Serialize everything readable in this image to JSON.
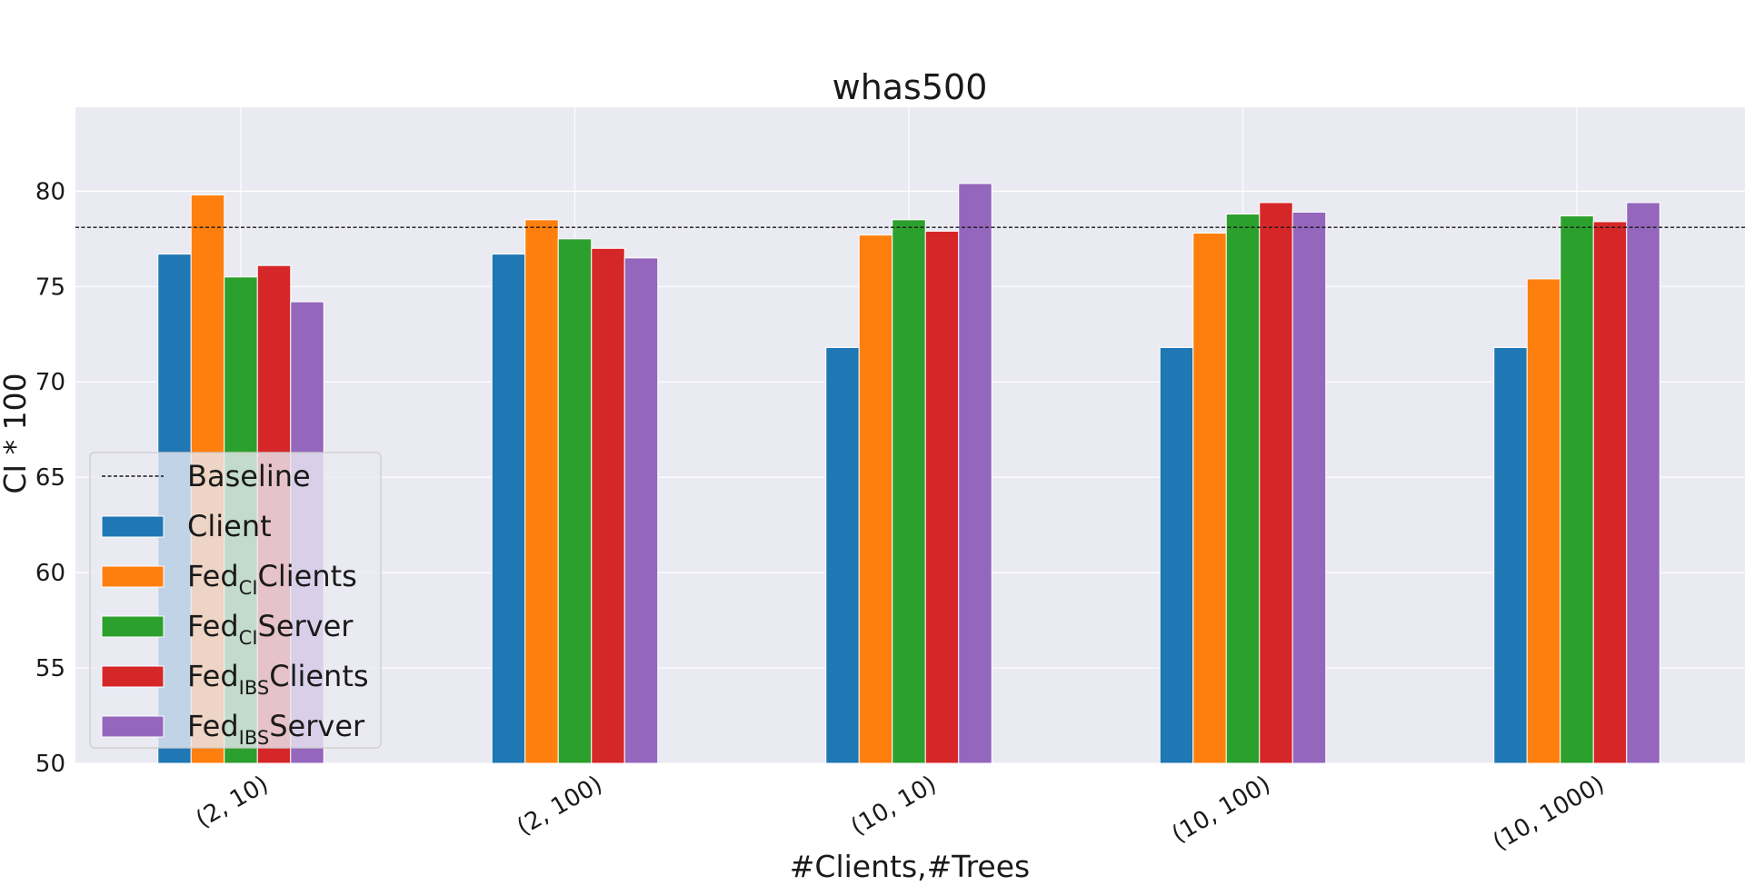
{
  "chart_data": {
    "type": "bar",
    "title": "whas500",
    "xlabel": "#Clients,#Trees",
    "ylabel": "CI * 100",
    "categories": [
      "(2, 10)",
      "(2, 100)",
      "(10, 10)",
      "(10, 100)",
      "(10, 1000)"
    ],
    "ylim": [
      50,
      84.4
    ],
    "yticks": [
      50,
      55,
      60,
      65,
      70,
      75,
      80
    ],
    "grid": true,
    "legend_position": "lower-left",
    "baseline": {
      "name": "Baseline",
      "value": 78.1,
      "style": "dashed",
      "color": "#1a1a1a"
    },
    "series": [
      {
        "name": "Client",
        "name_base": "Client",
        "name_sub": "",
        "name_tail": "",
        "color": "#1f77b4",
        "values": [
          76.7,
          76.7,
          71.8,
          71.8,
          71.8
        ]
      },
      {
        "name": "Fed_CI Clients",
        "name_base": "Fed",
        "name_sub": "CI",
        "name_tail": "Clients",
        "color": "#ff7f0e",
        "values": [
          79.8,
          78.5,
          77.7,
          77.8,
          75.4
        ]
      },
      {
        "name": "Fed_CI Server",
        "name_base": "Fed",
        "name_sub": "CI",
        "name_tail": "Server",
        "color": "#2ca02c",
        "values": [
          75.5,
          77.5,
          78.5,
          78.8,
          78.7
        ]
      },
      {
        "name": "Fed_IBS Clients",
        "name_base": "Fed",
        "name_sub": "IBS",
        "name_tail": "Clients",
        "color": "#d62728",
        "values": [
          76.1,
          77.0,
          77.9,
          79.4,
          78.4
        ]
      },
      {
        "name": "Fed_IBS Server",
        "name_base": "Fed",
        "name_sub": "IBS",
        "name_tail": "Server",
        "color": "#9467bd",
        "values": [
          74.2,
          76.5,
          80.4,
          78.9,
          79.4
        ]
      }
    ],
    "plot_background": "#eaeaf2",
    "grid_color": "#ffffff"
  }
}
